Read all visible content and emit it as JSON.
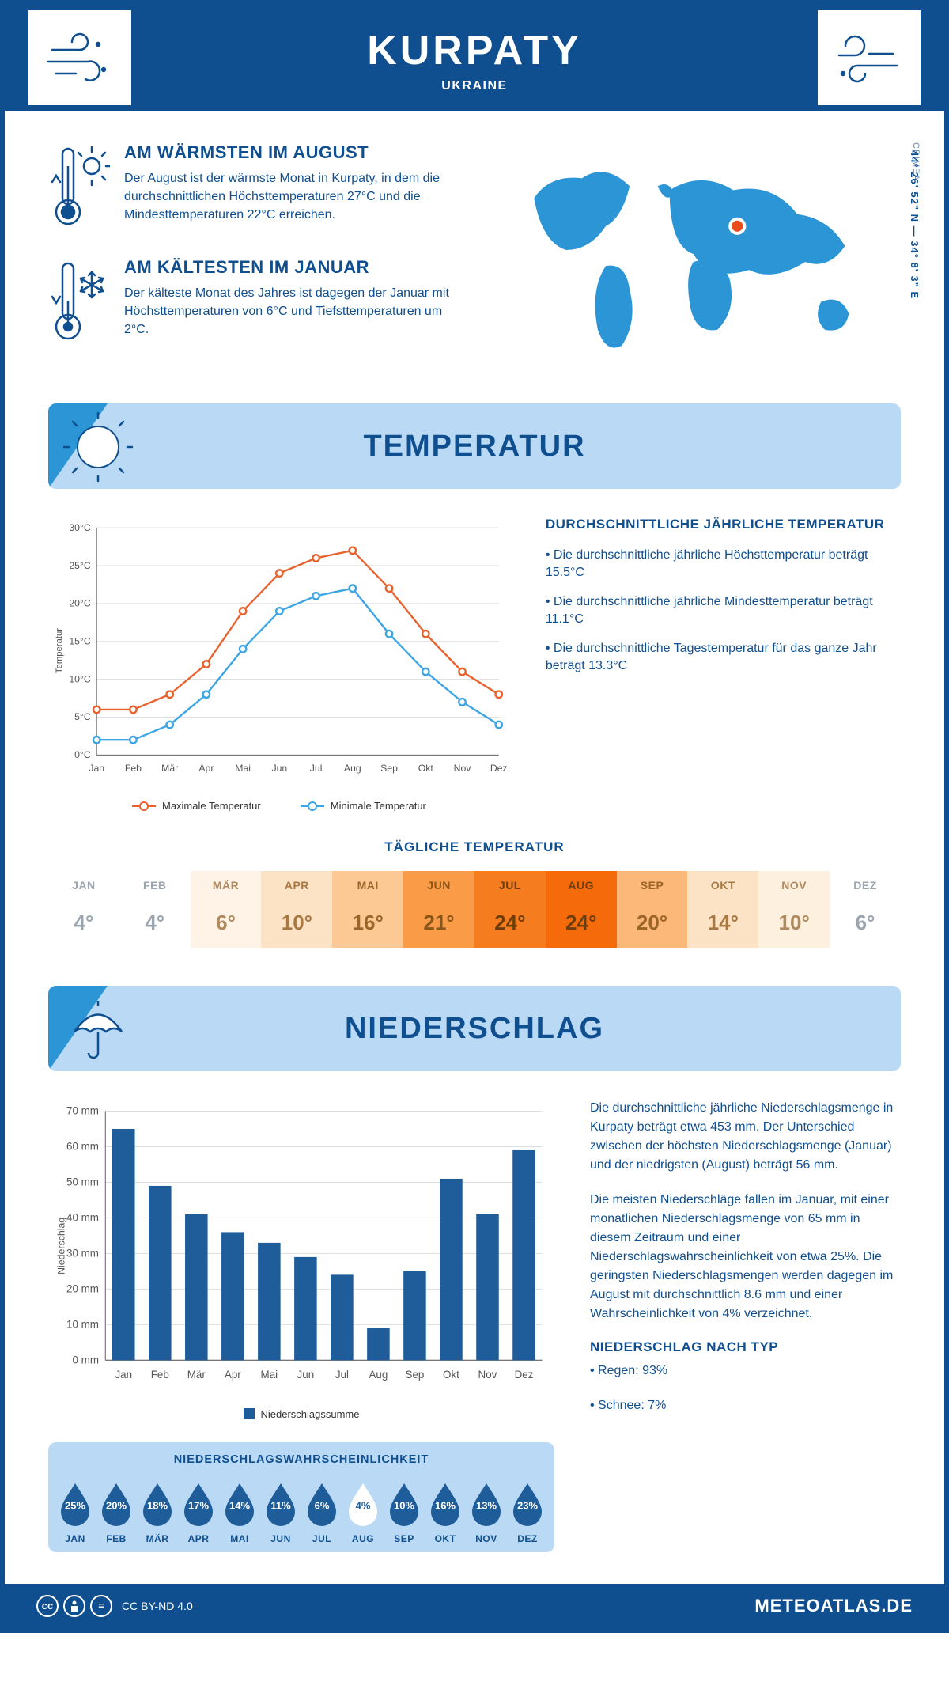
{
  "header": {
    "title": "KURPATY",
    "country": "UKRAINE"
  },
  "colors": {
    "brand_dark": "#104f8f",
    "brand_mid": "#2b95d6",
    "banner_bg": "#b9d9f4",
    "max_temp": "#e9622e",
    "min_temp": "#3ca5e4",
    "bar": "#1f5c9a",
    "marker_pin": "#e84c1a"
  },
  "intro": {
    "warm": {
      "title": "AM WÄRMSTEN IM AUGUST",
      "text": "Der August ist der wärmste Monat in Kurpaty, in dem die durchschnittlichen Höchsttemperaturen 27°C und die Mindesttemperaturen 22°C erreichen."
    },
    "cold": {
      "title": "AM KÄLTESTEN IM JANUAR",
      "text": "Der kälteste Monat des Jahres ist dagegen der Januar mit Höchsttemperaturen von 6°C und Tiefsttemperaturen um 2°C."
    },
    "coords": "44° 26' 52\" N — 34° 8' 3\" E",
    "region": "CRIMEA"
  },
  "sections": {
    "temperature": "TEMPERATUR",
    "precipitation": "NIEDERSCHLAG"
  },
  "months_short": [
    "Jan",
    "Feb",
    "Mär",
    "Apr",
    "Mai",
    "Jun",
    "Jul",
    "Aug",
    "Sep",
    "Okt",
    "Nov",
    "Dez"
  ],
  "months_upper": [
    "JAN",
    "FEB",
    "MÄR",
    "APR",
    "MAI",
    "JUN",
    "JUL",
    "AUG",
    "SEP",
    "OKT",
    "NOV",
    "DEZ"
  ],
  "temperature_chart": {
    "type": "line",
    "ylabel": "Temperatur",
    "ylim": [
      0,
      30
    ],
    "ytick_step": 5,
    "yticks": [
      "0°C",
      "5°C",
      "10°C",
      "15°C",
      "20°C",
      "25°C",
      "30°C"
    ],
    "max": [
      6,
      6,
      8,
      12,
      19,
      24,
      26,
      27,
      22,
      16,
      11,
      8
    ],
    "min": [
      2,
      2,
      4,
      8,
      14,
      19,
      21,
      22,
      16,
      11,
      7,
      4
    ],
    "legend_max": "Maximale Temperatur",
    "legend_min": "Minimale Temperatur"
  },
  "temperature_info": {
    "title": "DURCHSCHNITTLICHE JÄHRLICHE TEMPERATUR",
    "p1": "• Die durchschnittliche jährliche Höchsttemperatur beträgt 15.5°C",
    "p2": "• Die durchschnittliche jährliche Mindesttemperatur beträgt 11.1°C",
    "p3": "• Die durchschnittliche Tagestemperatur für das ganze Jahr beträgt 13.3°C"
  },
  "daily_temp": {
    "title": "TÄGLICHE TEMPERATUR",
    "values": [
      "4°",
      "4°",
      "6°",
      "10°",
      "16°",
      "21°",
      "24°",
      "24°",
      "20°",
      "14°",
      "10°",
      "6°"
    ],
    "bg_colors": [
      "#ffffff",
      "#ffffff",
      "#fef3e6",
      "#fde3c6",
      "#fcc893",
      "#fa9c47",
      "#f67d1f",
      "#f56a0a",
      "#fcb878",
      "#fde3c6",
      "#fef0de",
      "#ffffff"
    ],
    "text_colors": [
      "#9aa5b0",
      "#9aa5b0",
      "#b08a5f",
      "#a87842",
      "#9a6528",
      "#8a5518",
      "#6e3e0a",
      "#6e3e0a",
      "#9a6528",
      "#a87842",
      "#b08a5f",
      "#9aa5b0"
    ]
  },
  "precipitation_chart": {
    "type": "bar",
    "ylabel": "Niederschlag",
    "ylim": [
      0,
      70
    ],
    "ytick_step": 10,
    "yticks": [
      "0 mm",
      "10 mm",
      "20 mm",
      "30 mm",
      "40 mm",
      "50 mm",
      "60 mm",
      "70 mm"
    ],
    "values": [
      65,
      49,
      41,
      36,
      33,
      29,
      24,
      9,
      25,
      51,
      41,
      59
    ],
    "legend": "Niederschlagssumme"
  },
  "precipitation_text": {
    "p1": "Die durchschnittliche jährliche Niederschlagsmenge in Kurpaty beträgt etwa 453 mm. Der Unterschied zwischen der höchsten Niederschlagsmenge (Januar) und der niedrigsten (August) beträgt 56 mm.",
    "p2": "Die meisten Niederschläge fallen im Januar, mit einer monatlichen Niederschlagsmenge von 65 mm in diesem Zeitraum und einer Niederschlagswahrscheinlichkeit von etwa 25%. Die geringsten Niederschlagsmengen werden dagegen im August mit durchschnittlich 8.6 mm und einer Wahrscheinlichkeit von 4% verzeichnet.",
    "type_title": "NIEDERSCHLAG NACH TYP",
    "type1": "• Regen: 93%",
    "type2": "• Schnee: 7%"
  },
  "probability": {
    "title": "NIEDERSCHLAGSWAHRSCHEINLICHKEIT",
    "values": [
      "25%",
      "20%",
      "18%",
      "17%",
      "14%",
      "11%",
      "6%",
      "4%",
      "10%",
      "16%",
      "13%",
      "23%"
    ],
    "highlight_index": 7
  },
  "footer": {
    "license": "CC BY-ND 4.0",
    "site": "METEOATLAS.DE"
  }
}
